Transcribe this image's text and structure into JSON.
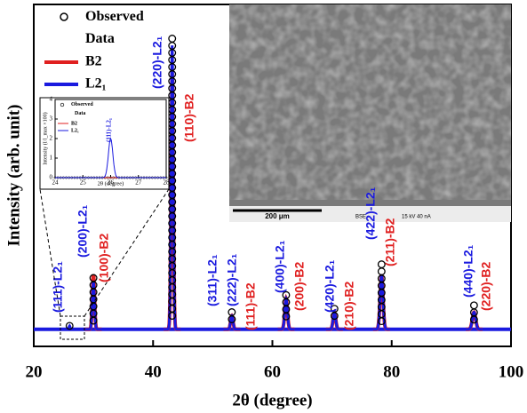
{
  "chart_data": [
    {
      "type": "xrd",
      "xlabel": "2θ (degree)",
      "ylabel": "Intensity (arb. unit)",
      "xlim": [
        20,
        100
      ],
      "xticks": [
        20,
        40,
        60,
        80,
        100
      ],
      "ylim": [
        0,
        100
      ],
      "background": 5,
      "peaks": [
        26,
        30,
        43.2,
        53.2,
        62.3,
        70.4,
        78.3,
        93.8
      ],
      "series": [
        {
          "name": "B2",
          "color": "#e02020",
          "values": [
            null,
            21,
            80,
            9,
            14,
            10,
            21,
            10
          ]
        },
        {
          "name": "L2₁",
          "color": "#1a1adf",
          "values": [
            6,
            19,
            88,
            9,
            14,
            10,
            21,
            10
          ]
        },
        {
          "name": "Observed Data",
          "color": "#000000",
          "values": [
            6,
            20,
            90,
            10,
            15,
            11,
            24,
            12
          ]
        }
      ],
      "annotations": [
        {
          "text": "(111)-L2₁",
          "color": "#1a1adf"
        },
        {
          "text": "(200)-L2₁",
          "color": "#1a1adf"
        },
        {
          "text": "(100)-B2",
          "color": "#e02020"
        },
        {
          "text": "(220)-L2₁",
          "color": "#1a1adf"
        },
        {
          "text": "(110)-B2",
          "color": "#e02020"
        },
        {
          "text": "(311)-L2₁",
          "color": "#1a1adf"
        },
        {
          "text": "(222)-L2₁",
          "color": "#1a1adf"
        },
        {
          "text": "(111)-B2",
          "color": "#e02020"
        },
        {
          "text": "(400)-L2₁",
          "color": "#1a1adf"
        },
        {
          "text": "(200)-B2",
          "color": "#e02020"
        },
        {
          "text": "(420)-L2₁",
          "color": "#1a1adf"
        },
        {
          "text": "(210)-B2",
          "color": "#e02020"
        },
        {
          "text": "(422)-L2₁",
          "color": "#1a1adf"
        },
        {
          "text": "(211)-B2",
          "color": "#e02020"
        },
        {
          "text": "(440)-L2₁",
          "color": "#1a1adf"
        },
        {
          "text": "(220)-B2",
          "color": "#e02020"
        }
      ],
      "micrograph": {
        "scale": "200 μm",
        "mode": "BSE",
        "conditions": "15 kV 40 nA"
      }
    },
    {
      "type": "inset",
      "xlabel": "2θ (degree)",
      "ylabel": "Intensity (I/I_max ×100)",
      "xlim": [
        24,
        28
      ],
      "xticks": [
        24,
        25,
        26,
        27,
        28
      ],
      "ylim": [
        0,
        4
      ],
      "yticks": [
        0,
        1,
        2,
        3,
        4
      ],
      "peak": 26,
      "series": [
        {
          "name": "Observed Data",
          "color": "#000000",
          "value": 0
        },
        {
          "name": "B2",
          "color": "#e02020",
          "value": 0
        },
        {
          "name": "L2₁",
          "color": "#1a1adf",
          "value": 2
        }
      ],
      "annotation": "(111)-L2₁"
    }
  ]
}
